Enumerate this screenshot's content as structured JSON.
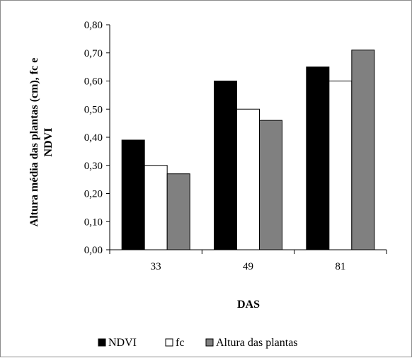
{
  "chart_data": {
    "type": "bar",
    "categories": [
      "33",
      "49",
      "81"
    ],
    "series": [
      {
        "name": "NDVI",
        "values": [
          0.39,
          0.6,
          0.65
        ],
        "color": "#000000"
      },
      {
        "name": "fc",
        "values": [
          0.3,
          0.5,
          0.6
        ],
        "color": "#ffffff"
      },
      {
        "name": "Altura das plantas",
        "values": [
          0.27,
          0.46,
          0.71
        ],
        "color": "#808080"
      }
    ],
    "xlabel": "DAS",
    "ylabel_lines": [
      "Altura média das plantas (cm), fc e",
      "NDVI"
    ],
    "ylim": [
      0,
      0.8
    ],
    "yticks": [
      "0,00",
      "0,10",
      "0,20",
      "0,30",
      "0,40",
      "0,50",
      "0,60",
      "0,70",
      "0,80"
    ],
    "grid": false,
    "legend_position": "bottom"
  }
}
